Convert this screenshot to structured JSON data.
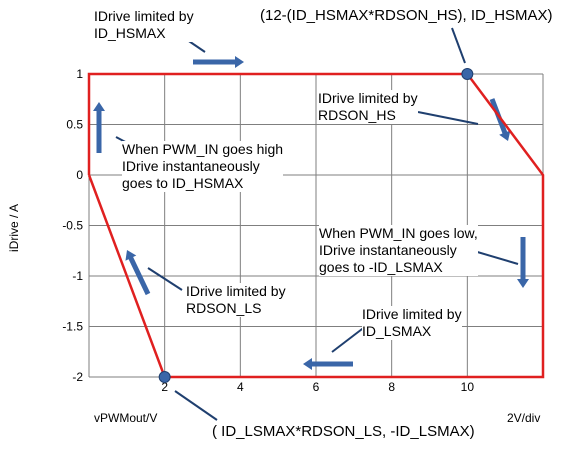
{
  "chart_data": {
    "type": "line",
    "title": "",
    "xlabel": "vPWMout/V",
    "ylabel": "iDrive / A",
    "x_scale_note": "2V/div",
    "xlim": [
      0,
      12
    ],
    "ylim": [
      -2,
      1
    ],
    "xticks": [
      0,
      2,
      4,
      6,
      8,
      10,
      12
    ],
    "xtick_labels": [
      "",
      "2",
      "4",
      "6",
      "8",
      "10",
      ""
    ],
    "yticks": [
      1,
      0.5,
      0,
      -0.5,
      -1,
      -1.5,
      -2
    ],
    "ytick_labels": [
      "1",
      "0.5",
      "0",
      "-0.5",
      "-1",
      "-1.5",
      "-2"
    ],
    "grid": true,
    "series": [
      {
        "color": "#e02020",
        "points": [
          {
            "x": 0,
            "y": 0
          },
          {
            "x": 0,
            "y": 1
          },
          {
            "x": 10,
            "y": 1
          },
          {
            "x": 12,
            "y": 0
          },
          {
            "x": 12,
            "y": -2
          },
          {
            "x": 2,
            "y": -2
          },
          {
            "x": 0,
            "y": 0
          }
        ]
      }
    ],
    "markers": [
      {
        "x": 10,
        "y": 1,
        "color": "#3a66a8"
      },
      {
        "x": 2,
        "y": -2,
        "color": "#3a66a8"
      }
    ],
    "annotations": {
      "hs_limit": "IDrive limited by\nID_HSMAX",
      "hs_point": "(12-(ID_HSMAX*RDSON_HS), ID_HSMAX)",
      "rdson_hs": "IDrive limited by\nRDSON_HS",
      "pwm_high": "When PWM_IN goes high\nIDrive instantaneously\ngoes to ID_HSMAX",
      "pwm_low": "When PWM_IN goes low,\nIDrive instantaneously\ngoes to -ID_LSMAX",
      "rdson_ls": "IDrive limited by\nRDSON_LS",
      "ls_limit": "IDrive limited by\nID_LSMAX",
      "ls_point": "( ID_LSMAX*RDSON_LS,  -ID_LSMAX)"
    }
  }
}
